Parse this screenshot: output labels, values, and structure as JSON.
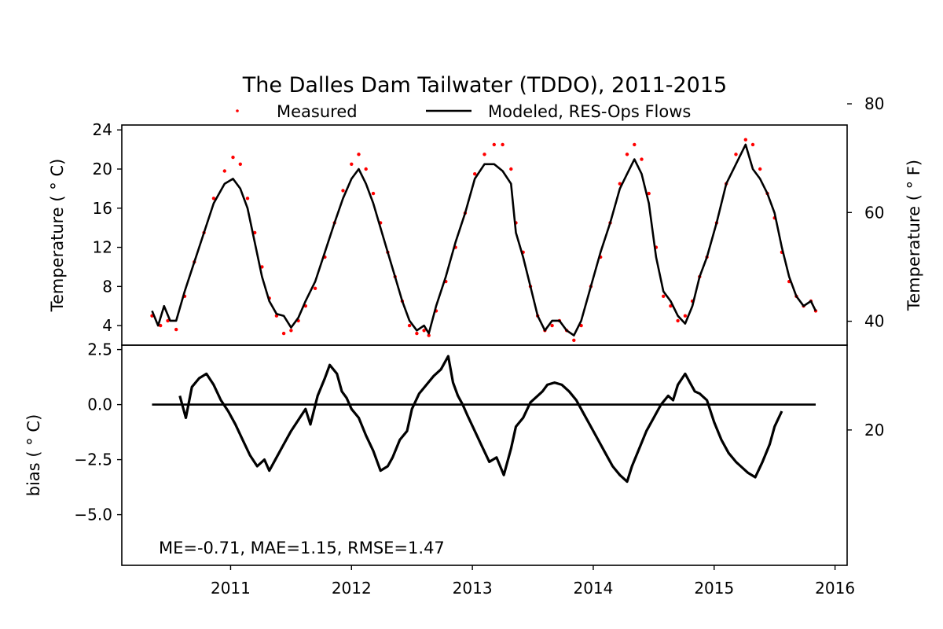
{
  "chart_data": [
    {
      "type": "line",
      "title": "The Dalles Dam Tailwater (TDDO), 2011-2015",
      "ylabel": "Temperature ($^\\circ$C)",
      "ylabel_display": "Temperature ( ° C)",
      "ylabel_right": "Temperature ( ° F)",
      "xlim": [
        2010.1,
        2016.1
      ],
      "ylim": [
        2,
        24.5
      ],
      "ylim_right": [
        35.6,
        76.1
      ],
      "yticks": [
        4,
        8,
        12,
        16,
        20,
        24
      ],
      "yticks_right": [
        20,
        40,
        60,
        80
      ],
      "legend": {
        "placement": "top-center"
      },
      "series": [
        {
          "name": "Measured",
          "style": "scatter",
          "color": "#ff0000",
          "x": [
            2010.35,
            2010.42,
            2010.48,
            2010.55,
            2010.62,
            2010.7,
            2010.78,
            2010.86,
            2010.95,
            2011.02,
            2011.08,
            2011.14,
            2011.2,
            2011.26,
            2011.32,
            2011.38,
            2011.44,
            2011.5,
            2011.56,
            2011.62,
            2011.7,
            2011.78,
            2011.86,
            2011.93,
            2012.0,
            2012.06,
            2012.12,
            2012.18,
            2012.24,
            2012.3,
            2012.36,
            2012.42,
            2012.48,
            2012.54,
            2012.6,
            2012.64,
            2012.7,
            2012.78,
            2012.86,
            2012.94,
            2013.02,
            2013.1,
            2013.18,
            2013.25,
            2013.32,
            2013.36,
            2013.42,
            2013.48,
            2013.54,
            2013.6,
            2013.66,
            2013.72,
            2013.78,
            2013.84,
            2013.9,
            2013.98,
            2014.06,
            2014.14,
            2014.22,
            2014.28,
            2014.34,
            2014.4,
            2014.46,
            2014.52,
            2014.58,
            2014.64,
            2014.7,
            2014.76,
            2014.82,
            2014.88,
            2014.94,
            2015.02,
            2015.1,
            2015.18,
            2015.26,
            2015.32,
            2015.38,
            2015.44,
            2015.5,
            2015.56,
            2015.62,
            2015.68,
            2015.74,
            2015.8,
            2015.84
          ],
          "y": [
            5.0,
            4.0,
            4.5,
            3.6,
            7.0,
            10.5,
            13.5,
            17.0,
            19.8,
            21.2,
            20.5,
            17.0,
            13.5,
            10.0,
            6.8,
            5.0,
            3.2,
            3.5,
            4.5,
            6.0,
            7.8,
            11.0,
            14.5,
            17.8,
            20.5,
            21.5,
            20.0,
            17.5,
            14.5,
            11.5,
            9.0,
            6.5,
            4.0,
            3.2,
            3.5,
            3.0,
            5.5,
            8.5,
            12.0,
            15.5,
            19.5,
            21.5,
            22.5,
            22.5,
            20.0,
            14.5,
            11.5,
            8.0,
            5.0,
            3.5,
            4.0,
            4.5,
            3.5,
            2.5,
            4.0,
            8.0,
            11.0,
            14.5,
            18.5,
            21.5,
            22.5,
            21.0,
            17.5,
            12.0,
            7.0,
            6.0,
            4.5,
            5.0,
            6.5,
            9.0,
            11.0,
            14.5,
            18.5,
            21.5,
            23.0,
            22.5,
            20.0,
            17.5,
            15.0,
            11.5,
            8.5,
            7.0,
            6.0,
            6.5,
            5.5
          ]
        },
        {
          "name": "Modeled, RES-Ops Flows",
          "style": "line",
          "color": "#000000",
          "x": [
            2010.35,
            2010.4,
            2010.45,
            2010.5,
            2010.55,
            2010.62,
            2010.7,
            2010.78,
            2010.86,
            2010.95,
            2011.02,
            2011.08,
            2011.14,
            2011.2,
            2011.26,
            2011.32,
            2011.38,
            2011.44,
            2011.5,
            2011.56,
            2011.62,
            2011.7,
            2011.78,
            2011.86,
            2011.93,
            2012.0,
            2012.06,
            2012.12,
            2012.18,
            2012.24,
            2012.3,
            2012.36,
            2012.42,
            2012.48,
            2012.54,
            2012.6,
            2012.64,
            2012.7,
            2012.78,
            2012.86,
            2012.94,
            2013.02,
            2013.1,
            2013.18,
            2013.25,
            2013.32,
            2013.36,
            2013.42,
            2013.48,
            2013.54,
            2013.6,
            2013.66,
            2013.72,
            2013.78,
            2013.84,
            2013.9,
            2013.98,
            2014.06,
            2014.14,
            2014.22,
            2014.28,
            2014.34,
            2014.4,
            2014.46,
            2014.52,
            2014.58,
            2014.64,
            2014.7,
            2014.76,
            2014.82,
            2014.88,
            2014.94,
            2015.02,
            2015.1,
            2015.18,
            2015.26,
            2015.32,
            2015.38,
            2015.44,
            2015.5,
            2015.56,
            2015.62,
            2015.68,
            2015.74,
            2015.8,
            2015.84
          ],
          "y": [
            5.5,
            4.0,
            6.0,
            4.5,
            4.5,
            7.5,
            10.5,
            13.5,
            16.5,
            18.5,
            19.0,
            18.0,
            16.0,
            12.5,
            9.0,
            6.5,
            5.2,
            5.0,
            3.8,
            4.8,
            6.5,
            8.5,
            11.5,
            14.5,
            17.0,
            19.0,
            20.0,
            18.5,
            16.5,
            14.0,
            11.5,
            9.0,
            6.5,
            4.5,
            3.5,
            4.0,
            3.2,
            6.0,
            9.0,
            12.5,
            15.5,
            19.0,
            20.5,
            20.5,
            19.8,
            18.5,
            13.5,
            11.0,
            8.0,
            5.0,
            3.5,
            4.5,
            4.5,
            3.5,
            3.0,
            4.5,
            8.0,
            11.5,
            14.5,
            18.0,
            19.5,
            21.0,
            19.5,
            16.5,
            11.0,
            7.5,
            6.5,
            5.0,
            4.2,
            6.0,
            9.0,
            11.0,
            14.5,
            18.5,
            20.5,
            22.5,
            20.0,
            19.0,
            17.5,
            15.5,
            12.0,
            9.0,
            7.0,
            6.0,
            6.5,
            5.5
          ]
        }
      ]
    },
    {
      "type": "line",
      "title": "",
      "ylabel": "bias ($^\\circ$C)",
      "ylabel_display": "bias ( ° C)",
      "xlim": [
        2010.1,
        2016.1
      ],
      "xticks": [
        2011,
        2012,
        2013,
        2014,
        2015,
        2016
      ],
      "ylim": [
        -7.3,
        2.7
      ],
      "yticks": [
        2.5,
        0.0,
        -2.5,
        -5.0
      ],
      "annotation": "ME=-0.71, MAE=1.15, RMSE=1.47",
      "zero_line": {
        "x": [
          2010.35,
          2015.84
        ],
        "y": 0
      },
      "series": [
        {
          "name": "bias",
          "color": "#000000",
          "x": [
            2010.58,
            2010.63,
            2010.68,
            2010.74,
            2010.8,
            2010.86,
            2010.92,
            2010.98,
            2011.04,
            2011.1,
            2011.16,
            2011.22,
            2011.28,
            2011.32,
            2011.38,
            2011.44,
            2011.5,
            2011.56,
            2011.62,
            2011.66,
            2011.72,
            2011.78,
            2011.82,
            2011.88,
            2011.92,
            2011.96,
            2012.0,
            2012.06,
            2012.12,
            2012.18,
            2012.24,
            2012.3,
            2012.34,
            2012.4,
            2012.46,
            2012.5,
            2012.56,
            2012.62,
            2012.68,
            2012.74,
            2012.8,
            2012.84,
            2012.88,
            2012.92,
            2012.96,
            2013.02,
            2013.08,
            2013.14,
            2013.2,
            2013.26,
            2013.32,
            2013.36,
            2013.42,
            2013.48,
            2013.54,
            2013.58,
            2013.62,
            2013.68,
            2013.74,
            2013.8,
            2013.86,
            2013.92,
            2013.98,
            2014.04,
            2014.1,
            2014.16,
            2014.22,
            2014.28,
            2014.32,
            2014.38,
            2014.44,
            2014.5,
            2014.56,
            2014.62,
            2014.66,
            2014.7,
            2014.76,
            2014.8,
            2014.84,
            2014.88,
            2014.94,
            2015.0,
            2015.06,
            2015.12,
            2015.18,
            2015.22,
            2015.28,
            2015.34,
            2015.4,
            2015.46,
            2015.5,
            2015.56
          ],
          "y": [
            0.4,
            -0.6,
            0.8,
            1.2,
            1.4,
            0.9,
            0.2,
            -0.3,
            -0.9,
            -1.6,
            -2.3,
            -2.8,
            -2.5,
            -3.0,
            -2.4,
            -1.8,
            -1.2,
            -0.7,
            -0.2,
            -0.9,
            0.4,
            1.2,
            1.8,
            1.4,
            0.6,
            0.3,
            -0.2,
            -0.6,
            -1.4,
            -2.1,
            -3.0,
            -2.8,
            -2.4,
            -1.6,
            -1.2,
            -0.2,
            0.5,
            0.9,
            1.3,
            1.6,
            2.2,
            1.0,
            0.4,
            0.0,
            -0.5,
            -1.2,
            -1.9,
            -2.6,
            -2.4,
            -3.2,
            -2.0,
            -1.0,
            -0.6,
            0.1,
            0.4,
            0.6,
            0.9,
            1.0,
            0.9,
            0.6,
            0.2,
            -0.4,
            -1.0,
            -1.6,
            -2.2,
            -2.8,
            -3.2,
            -3.5,
            -2.8,
            -2.0,
            -1.2,
            -0.6,
            0.0,
            0.4,
            0.2,
            0.9,
            1.4,
            1.0,
            0.6,
            0.5,
            0.2,
            -0.8,
            -1.6,
            -2.2,
            -2.6,
            -2.8,
            -3.1,
            -3.3,
            -2.6,
            -1.8,
            -1.0,
            -0.3
          ]
        }
      ]
    }
  ]
}
